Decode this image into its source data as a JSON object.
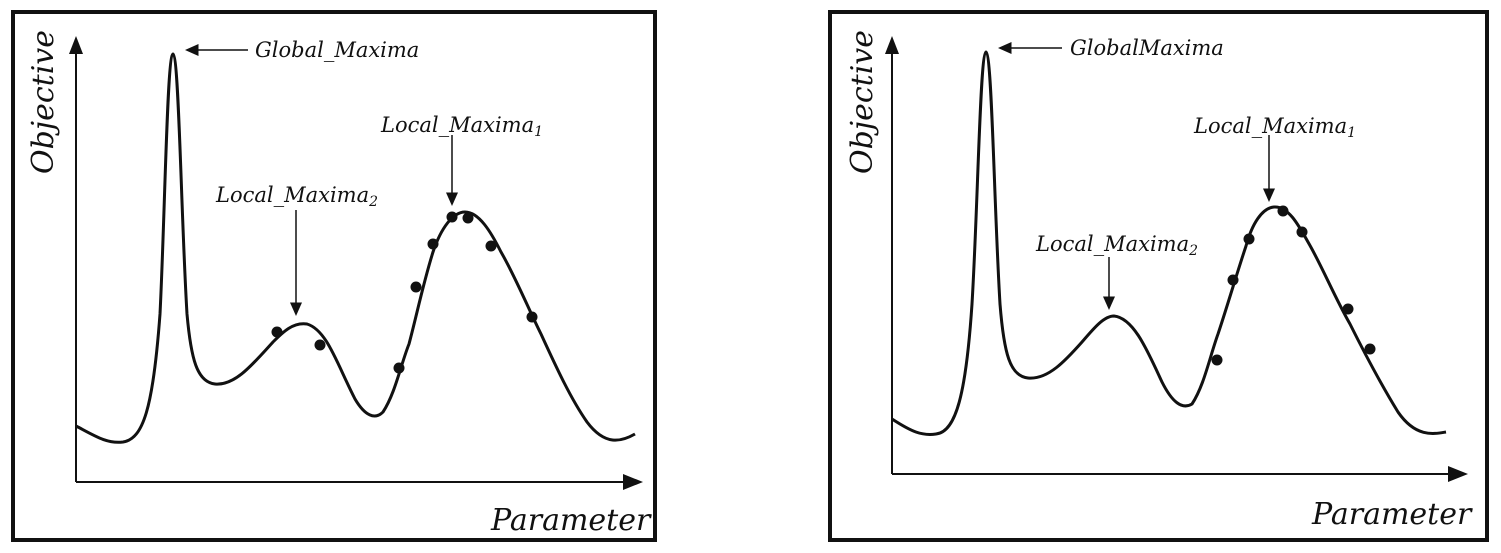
{
  "panels": [
    {
      "id": "left",
      "y_axis_label": "Objective",
      "x_axis_label": "Parameter",
      "annotations": {
        "global": {
          "text": "Global_Maxima",
          "sub": ""
        },
        "local1": {
          "text": "Local_Maxima",
          "sub": "1"
        },
        "local2": {
          "text": "Local_Maxima",
          "sub": "2"
        }
      },
      "sample_points": 9
    },
    {
      "id": "right",
      "y_axis_label": "Objective",
      "x_axis_label": "Parameter",
      "annotations": {
        "global": {
          "text": "GlobalMaxima",
          "sub": ""
        },
        "local1": {
          "text": "Local_Maxima",
          "sub": "1"
        },
        "local2": {
          "text": "Local_Maxima",
          "sub": "2"
        }
      },
      "sample_points": 7
    }
  ],
  "colors": {
    "ink": "#111111",
    "background": "#ffffff"
  }
}
